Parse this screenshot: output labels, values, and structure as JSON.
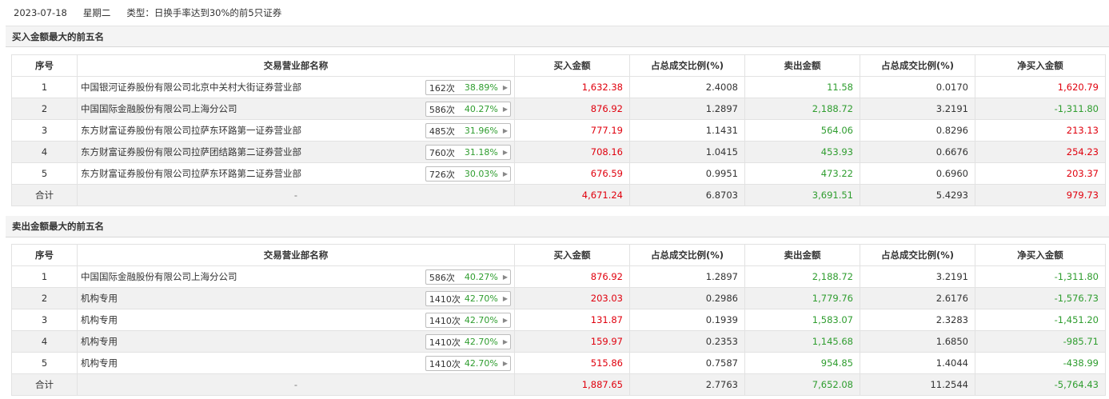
{
  "header": {
    "date": "2023-07-18",
    "weekday": "星期二",
    "type_text": "类型：日换手率达到30%的前5只证券"
  },
  "columns": [
    "序号",
    "交易营业部名称",
    "买入金额",
    "占总成交比例(%)",
    "卖出金额",
    "占总成交比例(%)",
    "净买入金额"
  ],
  "buy_section": {
    "title": "买入金额最大的前五名",
    "rows": [
      {
        "no": "1",
        "name": "中国银河证券股份有限公司北京中关村大街证券营业部",
        "count": "162次",
        "pct": "38.89%",
        "buy": "1,632.38",
        "buy_ratio": "2.4008",
        "sell": "11.58",
        "sell_ratio": "0.0170",
        "net": "1,620.79",
        "net_sign": "pos"
      },
      {
        "no": "2",
        "name": "中国国际金融股份有限公司上海分公司",
        "count": "586次",
        "pct": "40.27%",
        "buy": "876.92",
        "buy_ratio": "1.2897",
        "sell": "2,188.72",
        "sell_ratio": "3.2191",
        "net": "-1,311.80",
        "net_sign": "neg"
      },
      {
        "no": "3",
        "name": "东方财富证券股份有限公司拉萨东环路第一证券营业部",
        "count": "485次",
        "pct": "31.96%",
        "buy": "777.19",
        "buy_ratio": "1.1431",
        "sell": "564.06",
        "sell_ratio": "0.8296",
        "net": "213.13",
        "net_sign": "pos"
      },
      {
        "no": "4",
        "name": "东方财富证券股份有限公司拉萨团结路第二证券营业部",
        "count": "760次",
        "pct": "31.18%",
        "buy": "708.16",
        "buy_ratio": "1.0415",
        "sell": "453.93",
        "sell_ratio": "0.6676",
        "net": "254.23",
        "net_sign": "pos"
      },
      {
        "no": "5",
        "name": "东方财富证券股份有限公司拉萨东环路第二证券营业部",
        "count": "726次",
        "pct": "30.03%",
        "buy": "676.59",
        "buy_ratio": "0.9951",
        "sell": "473.22",
        "sell_ratio": "0.6960",
        "net": "203.37",
        "net_sign": "pos"
      }
    ],
    "total": {
      "label": "合计",
      "name": "-",
      "buy": "4,671.24",
      "buy_ratio": "6.8703",
      "sell": "3,691.51",
      "sell_ratio": "5.4293",
      "net": "979.73",
      "net_sign": "pos"
    }
  },
  "sell_section": {
    "title": "卖出金额最大的前五名",
    "rows": [
      {
        "no": "1",
        "name": "中国国际金融股份有限公司上海分公司",
        "count": "586次",
        "pct": "40.27%",
        "buy": "876.92",
        "buy_ratio": "1.2897",
        "sell": "2,188.72",
        "sell_ratio": "3.2191",
        "net": "-1,311.80",
        "net_sign": "neg"
      },
      {
        "no": "2",
        "name": "机构专用",
        "count": "1410次",
        "pct": "42.70%",
        "buy": "203.03",
        "buy_ratio": "0.2986",
        "sell": "1,779.76",
        "sell_ratio": "2.6176",
        "net": "-1,576.73",
        "net_sign": "neg"
      },
      {
        "no": "3",
        "name": "机构专用",
        "count": "1410次",
        "pct": "42.70%",
        "buy": "131.87",
        "buy_ratio": "0.1939",
        "sell": "1,583.07",
        "sell_ratio": "2.3283",
        "net": "-1,451.20",
        "net_sign": "neg"
      },
      {
        "no": "4",
        "name": "机构专用",
        "count": "1410次",
        "pct": "42.70%",
        "buy": "159.97",
        "buy_ratio": "0.2353",
        "sell": "1,145.68",
        "sell_ratio": "1.6850",
        "net": "-985.71",
        "net_sign": "neg"
      },
      {
        "no": "5",
        "name": "机构专用",
        "count": "1410次",
        "pct": "42.70%",
        "buy": "515.86",
        "buy_ratio": "0.7587",
        "sell": "954.85",
        "sell_ratio": "1.4044",
        "net": "-438.99",
        "net_sign": "neg"
      }
    ],
    "total": {
      "label": "合计",
      "name": "-",
      "buy": "1,887.65",
      "buy_ratio": "2.7763",
      "sell": "7,652.08",
      "sell_ratio": "11.2544",
      "net": "-5,764.43",
      "net_sign": "neg"
    }
  },
  "colors": {
    "positive": "#e0000d",
    "negative": "#2f9d2f",
    "row_alt": "#f1f1f1"
  },
  "icons": {
    "badge_arrow": "caret-right-icon"
  }
}
